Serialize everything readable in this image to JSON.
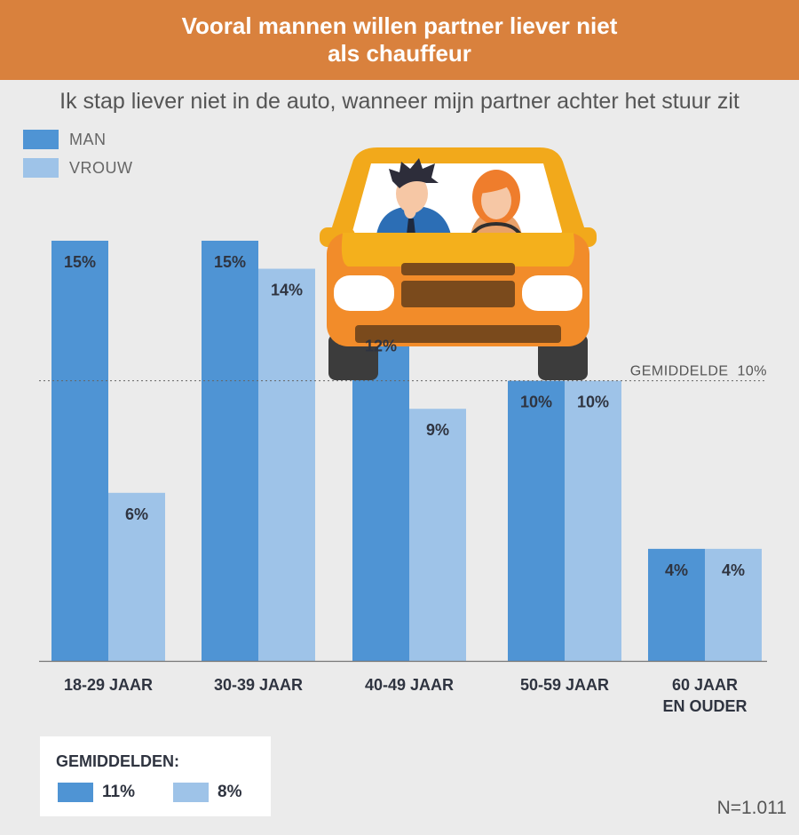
{
  "header": {
    "title_line1": "Vooral mannen willen partner liever niet",
    "title_line2": "als chauffeur",
    "subtitle": "Ik stap liever niet in de auto, wanneer mijn partner achter het stuur zit"
  },
  "legend": {
    "items": [
      {
        "label": "MAN",
        "color": "#4f94d4"
      },
      {
        "label": "VROUW",
        "color": "#9ec3e8"
      }
    ]
  },
  "average_line": {
    "label": "GEMIDDELDE  10%",
    "value": 10
  },
  "averages": {
    "title": "GEMIDDELDEN:",
    "man_value": "11%",
    "vrouw_value": "8%"
  },
  "footnote": "N=1.011",
  "chart_data": {
    "type": "bar",
    "categories": [
      [
        "18-29 JAAR"
      ],
      [
        "30-39 JAAR"
      ],
      [
        "40-49 JAAR"
      ],
      [
        "50-59 JAAR"
      ],
      [
        "60 JAAR",
        "EN OUDER"
      ]
    ],
    "series": [
      {
        "name": "MAN",
        "values": [
          15,
          15,
          12,
          10,
          4
        ],
        "labels": [
          "15%",
          "15%",
          "12%",
          "10%",
          "4%"
        ],
        "color": "#4f94d4"
      },
      {
        "name": "VROUW",
        "values": [
          6,
          14,
          9,
          10,
          4
        ],
        "labels": [
          "6%",
          "14%",
          "9%",
          "10%",
          "4%"
        ],
        "color": "#9ec3e8"
      }
    ],
    "ylim": [
      0,
      15
    ],
    "grid": false,
    "legend_position": "top-left"
  }
}
